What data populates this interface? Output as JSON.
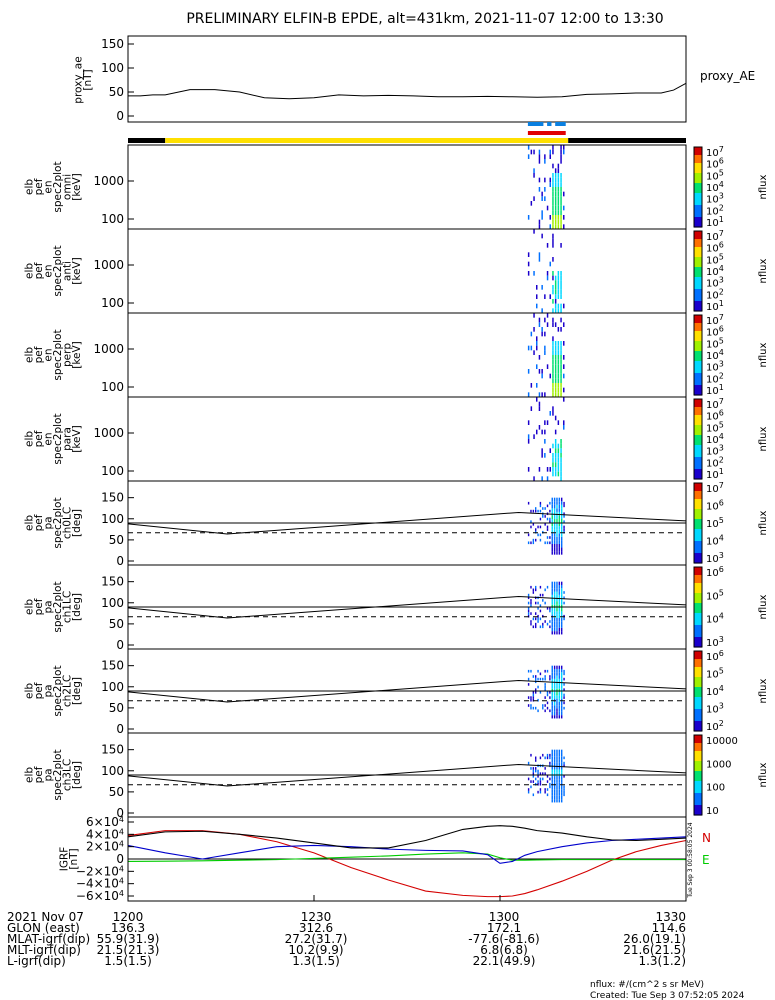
{
  "title": "PRELIMINARY ELFIN-B EPDE, alt=431km, 2021-11-07 12:00 to 13:30",
  "colors": {
    "black": "#000000",
    "yellow": "#ffe000",
    "blue_flag": "#0a7fe0",
    "red_flag": "#e00000",
    "grf_n": "#d40000",
    "grf_e": "#00cc00",
    "grf_z": "#0000cc"
  },
  "chart_data": [
    {
      "type": "line",
      "id": "proxy_ae",
      "ylabel": "proxy_ae\n[nT]",
      "legend": "proxy_AE",
      "ylim": [
        0,
        150
      ],
      "yticks": [
        "0",
        "50",
        "100",
        "150"
      ],
      "x_minutes": [
        0,
        2,
        4,
        6,
        10,
        14,
        18,
        22,
        26,
        30,
        34,
        38,
        42,
        46,
        50,
        54,
        58,
        62,
        66,
        70,
        74,
        78,
        82,
        86,
        88,
        90
      ],
      "values": [
        42,
        42,
        44,
        44,
        55,
        55,
        50,
        38,
        36,
        38,
        44,
        42,
        43,
        42,
        40,
        40,
        41,
        40,
        39,
        40,
        45,
        46,
        48,
        48,
        54,
        68
      ]
    },
    {
      "type": "bar",
      "id": "science_zone",
      "segments": [
        {
          "from": 0,
          "to": 6,
          "color": "black"
        },
        {
          "from": 6,
          "to": 71,
          "color": "yellow"
        },
        {
          "from": 71,
          "to": 90,
          "color": "black"
        }
      ],
      "flags": [
        {
          "row": "top",
          "from": 64.5,
          "to": 67,
          "color": "blue_flag"
        },
        {
          "row": "top",
          "from": 67.6,
          "to": 68.3,
          "color": "blue_flag"
        },
        {
          "row": "top",
          "from": 68.9,
          "to": 70.6,
          "color": "blue_flag"
        },
        {
          "row": "bottom",
          "from": 64.5,
          "to": 70.6,
          "color": "red_flag"
        }
      ]
    },
    {
      "type": "heatmap",
      "id": "energy_omni",
      "ylabel": "elb\npef\nen\nspec2plot\nomni\n[keV]",
      "yticks": [
        "1000",
        "100"
      ],
      "cbar_ticks": [
        "10⁷",
        "10⁶",
        "10⁵",
        "10⁴",
        "10³",
        "10²",
        "10¹"
      ],
      "cbar_label": "nflux",
      "active": [
        64.5,
        70.6
      ]
    },
    {
      "type": "heatmap",
      "id": "energy_anti",
      "ylabel": "elb\npef\nen\nspec2plot\nanti\n[keV]",
      "yticks": [
        "1000",
        "100"
      ],
      "cbar_ticks": [
        "10⁷",
        "10⁶",
        "10⁵",
        "10⁴",
        "10³",
        "10²",
        "10¹"
      ],
      "cbar_label": "nflux",
      "active": [
        64.5,
        70.6
      ]
    },
    {
      "type": "heatmap",
      "id": "energy_perp",
      "ylabel": "elb\npef\nen\nspec2plot\nperp\n[keV]",
      "yticks": [
        "1000",
        "100"
      ],
      "cbar_ticks": [
        "10⁷",
        "10⁶",
        "10⁵",
        "10⁴",
        "10³",
        "10²",
        "10¹"
      ],
      "cbar_label": "nflux",
      "active": [
        64.5,
        70.6
      ]
    },
    {
      "type": "heatmap",
      "id": "energy_para",
      "ylabel": "elb\npef\nen\nspec2plot\npara\n[keV]",
      "yticks": [
        "1000",
        "100"
      ],
      "cbar_ticks": [
        "10⁷",
        "10⁶",
        "10⁵",
        "10⁴",
        "10³",
        "10²",
        "10¹"
      ],
      "cbar_label": "nflux",
      "active": [
        64.5,
        70.6
      ]
    },
    {
      "type": "heatmap",
      "id": "pa_ch0",
      "ylabel": "elb\npef\npa\nspec2plot\nch0LC\n[deg]",
      "ylim": [
        0,
        180
      ],
      "yticks": [
        "0",
        "50",
        "100",
        "150"
      ],
      "cbar_ticks": [
        "10⁷",
        "10⁶",
        "10⁵",
        "10⁴",
        "10³"
      ],
      "cbar_label": "nflux",
      "active": [
        64.5,
        70.6
      ]
    },
    {
      "type": "heatmap",
      "id": "pa_ch1",
      "ylabel": "elb\npef\npa\nspec2plot\nch1LC\n[deg]",
      "ylim": [
        0,
        180
      ],
      "yticks": [
        "0",
        "50",
        "100",
        "150"
      ],
      "cbar_ticks": [
        "10⁶",
        "10⁵",
        "10⁴",
        "10³"
      ],
      "cbar_label": "nflux",
      "active": [
        64.5,
        70.6
      ]
    },
    {
      "type": "heatmap",
      "id": "pa_ch2",
      "ylabel": "elb\npef\npa\nspec2plot\nch2LC\n[deg]",
      "ylim": [
        0,
        180
      ],
      "yticks": [
        "0",
        "50",
        "100",
        "150"
      ],
      "cbar_ticks": [
        "10⁶",
        "10⁵",
        "10⁴",
        "10³",
        "10²"
      ],
      "cbar_label": "nflux",
      "active": [
        64.5,
        70.6
      ]
    },
    {
      "type": "heatmap",
      "id": "pa_ch3",
      "ylabel": "elb\npef\npa\nspec2plot\nch3LC\n[deg]",
      "ylim": [
        0,
        180
      ],
      "yticks": [
        "0",
        "50",
        "100",
        "150"
      ],
      "cbar_ticks": [
        "10000",
        "1000",
        "100",
        "10"
      ],
      "cbar_label": "nflux",
      "active": [
        64.5,
        70.6
      ]
    },
    {
      "type": "line",
      "id": "pa_reference",
      "x_minutes": [
        0,
        16,
        63,
        90
      ],
      "loss_cone_deg": [
        88,
        64,
        115,
        95
      ],
      "horizontal_solid_deg": 90,
      "horizontal_dashed_deg": 67
    },
    {
      "type": "line",
      "id": "grf",
      "ylabel": "IGRF\n[nT]",
      "ylim": [
        -60000,
        60000
      ],
      "yticks": [
        "6×10⁴",
        "4×10⁴",
        "2×10⁴",
        "0",
        "−2×10⁴",
        "−4×10⁴",
        "−6×10⁴"
      ],
      "x_minutes": [
        0,
        6,
        12,
        18,
        24,
        30,
        36,
        42,
        48,
        54,
        58,
        60,
        62,
        64,
        66,
        70,
        74,
        78,
        82,
        86,
        90
      ],
      "series": [
        {
          "name": "N",
          "color": "grf_n",
          "values": [
            38000,
            46000,
            46000,
            40000,
            28000,
            10000,
            -14000,
            -34000,
            -52000,
            -59000,
            -61000,
            -61000,
            -60000,
            -56000,
            -50000,
            -36000,
            -20000,
            -2000,
            12000,
            22000,
            30000
          ]
        },
        {
          "name": "E",
          "color": "grf_e",
          "values": [
            -4000,
            -3500,
            -3000,
            -2000,
            -1000,
            1000,
            3000,
            5000,
            8000,
            10000,
            8000,
            2000,
            -2000,
            -2000,
            -1500,
            -1000,
            -1000,
            -1000,
            -1000,
            -1000,
            -1000
          ]
        },
        {
          "name": "",
          "color": "grf_z",
          "values": [
            22000,
            10000,
            0,
            10000,
            20000,
            22000,
            20000,
            16000,
            14000,
            13000,
            7000,
            -7000,
            -4000,
            6000,
            12000,
            20000,
            26000,
            30000,
            32000,
            34000,
            36000
          ]
        },
        {
          "name": "",
          "color": "black",
          "values": [
            36000,
            44000,
            45000,
            40000,
            34000,
            26000,
            18000,
            18000,
            30000,
            48000,
            53000,
            54000,
            53000,
            50000,
            46000,
            42000,
            36000,
            31000,
            30000,
            32000,
            34000
          ]
        }
      ],
      "side_label": "Tue Sep  3 00:58:05 2024"
    },
    {
      "type": "table",
      "id": "time_axis",
      "x_ticks": [
        {
          "minute": 0,
          "label": "1200"
        },
        {
          "minute": 30,
          "label": "1230"
        },
        {
          "minute": 60,
          "label": "1300"
        },
        {
          "minute": 90,
          "label": "1330"
        }
      ],
      "rows": [
        {
          "label": "2021 Nov 07",
          "values": [
            "1200",
            "1230",
            "1300",
            "1330"
          ]
        },
        {
          "label": "GLON (east)",
          "values": [
            "136.3",
            "312.6",
            "172.1",
            "114.6"
          ]
        },
        {
          "label": "MLAT-igrf(dip)",
          "values": [
            "55.9(31.9)",
            "27.2(31.7)",
            "-77.6(-81.6)",
            "26.0(19.1)"
          ]
        },
        {
          "label": "MLT-igrf(dip)",
          "values": [
            "21.5(21.3)",
            "10.2(9.9)",
            "6.8(6.8)",
            "21.6(21.5)"
          ]
        },
        {
          "label": "L-igrf(dip)",
          "values": [
            "1.5(1.5)",
            "1.3(1.5)",
            "22.1(49.9)",
            "1.3(1.2)"
          ]
        }
      ]
    }
  ],
  "footer": {
    "units": "nflux: #/(cm^2 s sr MeV)",
    "created": "Created: Tue Sep  3 07:52:05 2024"
  }
}
